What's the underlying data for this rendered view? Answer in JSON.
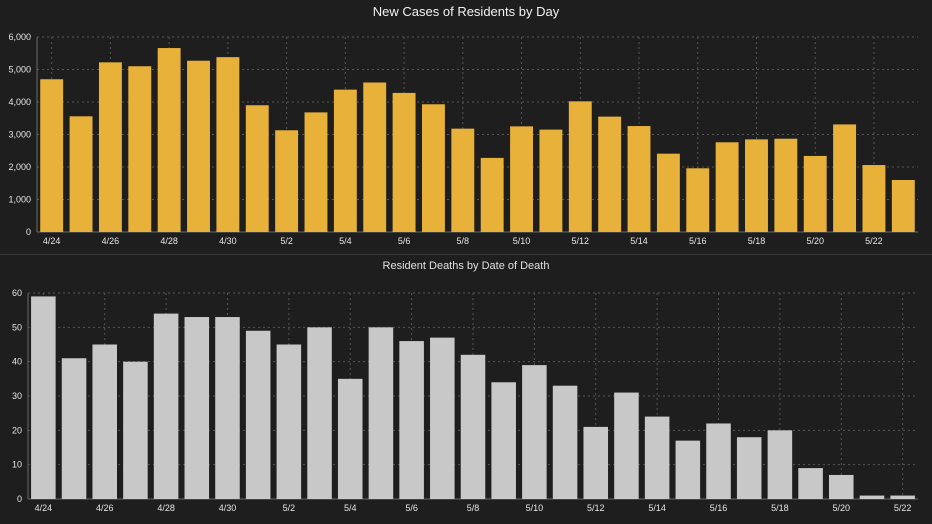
{
  "chart_data": [
    {
      "type": "bar",
      "title": "New Cases of Residents by Day",
      "xlabel": "",
      "ylabel": "",
      "ylim": [
        0,
        6000
      ],
      "yticks": [
        "0",
        "1,000",
        "2,000",
        "3,000",
        "4,000",
        "5,000",
        "6,000"
      ],
      "ytick_values": [
        0,
        1000,
        2000,
        3000,
        4000,
        5000,
        6000
      ],
      "categories": [
        "4/24",
        "4/25",
        "4/26",
        "4/27",
        "4/28",
        "4/29",
        "4/30",
        "5/1",
        "5/2",
        "5/3",
        "5/4",
        "5/5",
        "5/6",
        "5/7",
        "5/8",
        "5/9",
        "5/10",
        "5/11",
        "5/12",
        "5/13",
        "5/14",
        "5/15",
        "5/16",
        "5/17",
        "5/18",
        "5/19",
        "5/20",
        "5/21",
        "5/22",
        "5/23"
      ],
      "xtick_labels": [
        "4/24",
        "4/26",
        "4/28",
        "4/30",
        "5/2",
        "5/4",
        "5/6",
        "5/8",
        "5/10",
        "5/12",
        "5/14",
        "5/16",
        "5/18",
        "5/20",
        "5/22"
      ],
      "values": [
        4700,
        3560,
        5220,
        5100,
        5660,
        5270,
        5380,
        3900,
        3130,
        3680,
        4380,
        4600,
        4280,
        3930,
        3180,
        2280,
        3250,
        3150,
        4020,
        3550,
        3260,
        2410,
        1960,
        2760,
        2850,
        2870,
        2340,
        3310,
        2060,
        1600
      ],
      "color": "#e8b23a",
      "grid": true
    },
    {
      "type": "bar",
      "title": "Resident Deaths by Date of Death",
      "xlabel": "",
      "ylabel": "",
      "ylim": [
        0,
        60
      ],
      "yticks": [
        "0",
        "10",
        "20",
        "30",
        "40",
        "50",
        "60"
      ],
      "ytick_values": [
        0,
        10,
        20,
        30,
        40,
        50,
        60
      ],
      "categories": [
        "4/24",
        "4/25",
        "4/26",
        "4/27",
        "4/28",
        "4/29",
        "4/30",
        "5/1",
        "5/2",
        "5/3",
        "5/4",
        "5/5",
        "5/6",
        "5/7",
        "5/8",
        "5/9",
        "5/10",
        "5/11",
        "5/12",
        "5/13",
        "5/14",
        "5/15",
        "5/16",
        "5/17",
        "5/18",
        "5/19",
        "5/20",
        "5/21",
        "5/22"
      ],
      "xtick_labels": [
        "4/24",
        "4/26",
        "4/28",
        "4/30",
        "5/2",
        "5/4",
        "5/6",
        "5/8",
        "5/10",
        "5/12",
        "5/14",
        "5/16",
        "5/18",
        "5/20",
        "5/22"
      ],
      "values": [
        59,
        41,
        45,
        40,
        54,
        53,
        53,
        49,
        45,
        50,
        35,
        50,
        46,
        47,
        42,
        34,
        39,
        33,
        21,
        31,
        24,
        17,
        22,
        18,
        20,
        9,
        7,
        1,
        1
      ],
      "color": "#c8c8c8",
      "grid": true
    }
  ]
}
